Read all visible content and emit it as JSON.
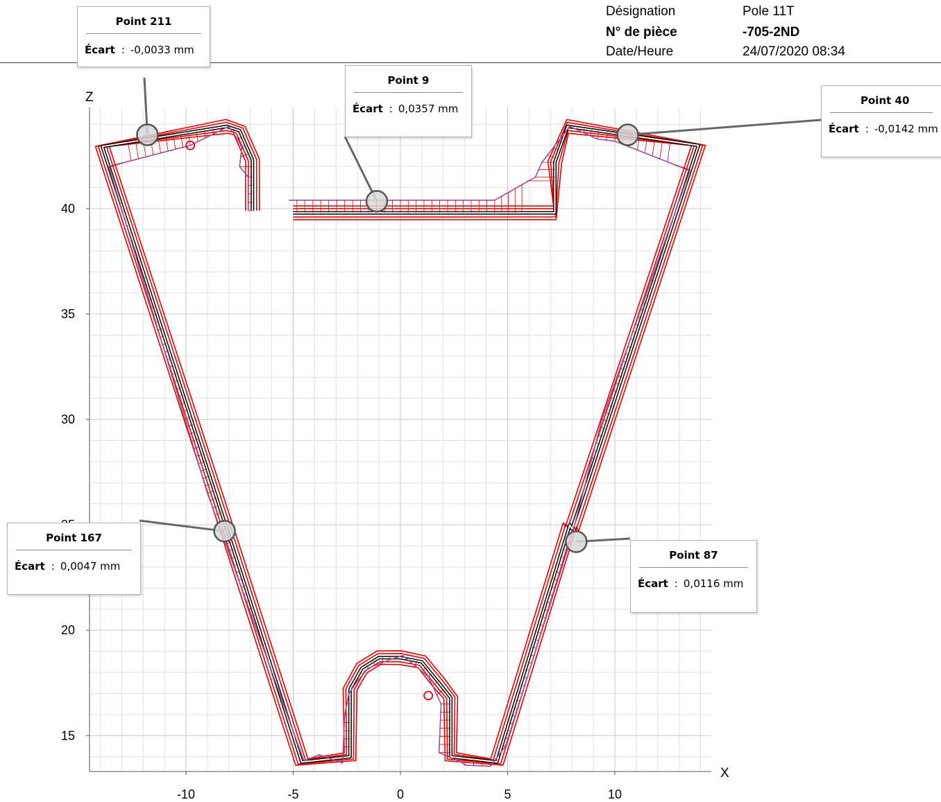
{
  "header": {
    "designation_label": "Désignation",
    "designation_value": "Pole 11T",
    "part_label": "N° de pièce",
    "part_value": "-705-2ND",
    "datetime_label": "Date/Heure",
    "datetime_value": "24/07/2020 08:34"
  },
  "callouts": [
    {
      "id": "p211",
      "title": "Point 211",
      "label": "Écart",
      "sep": ":",
      "value": "-0,0033 mm",
      "x": -11.8,
      "z": 43.5
    },
    {
      "id": "p9",
      "title": "Point 9",
      "label": "Écart",
      "sep": ":",
      "value": "0,0357 mm",
      "x": -1.1,
      "z": 40.35
    },
    {
      "id": "p40",
      "title": "Point 40",
      "label": "Écart",
      "sep": ":",
      "value": "-0,0142 mm",
      "x": 10.6,
      "z": 43.5
    },
    {
      "id": "p167",
      "title": "Point 167",
      "label": "Écart",
      "sep": ":",
      "value": "0,0047 mm",
      "x": -8.2,
      "z": 24.7
    },
    {
      "id": "p87",
      "title": "Point 87",
      "label": "Écart",
      "sep": ":",
      "value": "0,0116 mm",
      "x": 8.2,
      "z": 24.2
    }
  ],
  "chart_data": {
    "type": "line",
    "xlabel": "X",
    "ylabel": "Z",
    "xlim": [
      -14.5,
      14.5
    ],
    "ylim": [
      13.3,
      44.8
    ],
    "xticks": [
      -10,
      -5,
      0,
      5,
      10
    ],
    "yticks": [
      15,
      20,
      25,
      30,
      35,
      40
    ],
    "grid": true,
    "colors": {
      "nominal": "#000000",
      "tolerance": "#e00000",
      "measured": "#9b4f9b",
      "deviation": "#e00000"
    },
    "series": [
      {
        "role": "nominal",
        "x": [
          -6.9,
          -6.9,
          -7.5,
          -8.1,
          -13.9,
          -8.0,
          -4.6,
          -2.35,
          -2.35,
          -1.8,
          -1.0,
          0,
          1.0,
          1.8,
          2.35,
          2.35,
          4.5,
          7.9,
          8.0,
          13.9,
          7.8,
          7.2,
          7.2,
          -5.0
        ],
        "z": [
          39.9,
          42.3,
          43.7,
          43.9,
          42.95,
          24.5,
          13.75,
          14.0,
          17.2,
          18.2,
          18.7,
          18.7,
          18.5,
          17.5,
          16.8,
          14.0,
          13.75,
          25.0,
          24.8,
          43.0,
          43.9,
          42.2,
          39.8,
          39.8
        ]
      },
      {
        "role": "measured",
        "x": [
          -7.1,
          -7.1,
          -7.5,
          -7.4,
          -7.6,
          -8.0,
          -9.8,
          -13.6,
          -9.0,
          -4.5,
          -3.8,
          -2.7,
          -2.6,
          -2.4,
          -2.0,
          -1.5,
          -0.5,
          0.1,
          1.3,
          1.9,
          1.8,
          2.9,
          3.0,
          4.2,
          4.9,
          8.0,
          9.4,
          13.5,
          10.0,
          9.2,
          7.9,
          6.6,
          6.3,
          4.4,
          0,
          -5.2
        ],
        "z": [
          39.9,
          41.5,
          42.0,
          42.9,
          43.3,
          43.9,
          43.0,
          42.0,
          26.5,
          13.8,
          14.1,
          13.7,
          16.0,
          17.0,
          17.6,
          18.2,
          18.6,
          18.8,
          17.8,
          16.5,
          14.2,
          13.7,
          13.6,
          13.55,
          14.5,
          24.5,
          30.0,
          41.8,
          43.2,
          43.3,
          43.9,
          42.2,
          41.5,
          40.4,
          40.4,
          40.4
        ]
      }
    ]
  }
}
